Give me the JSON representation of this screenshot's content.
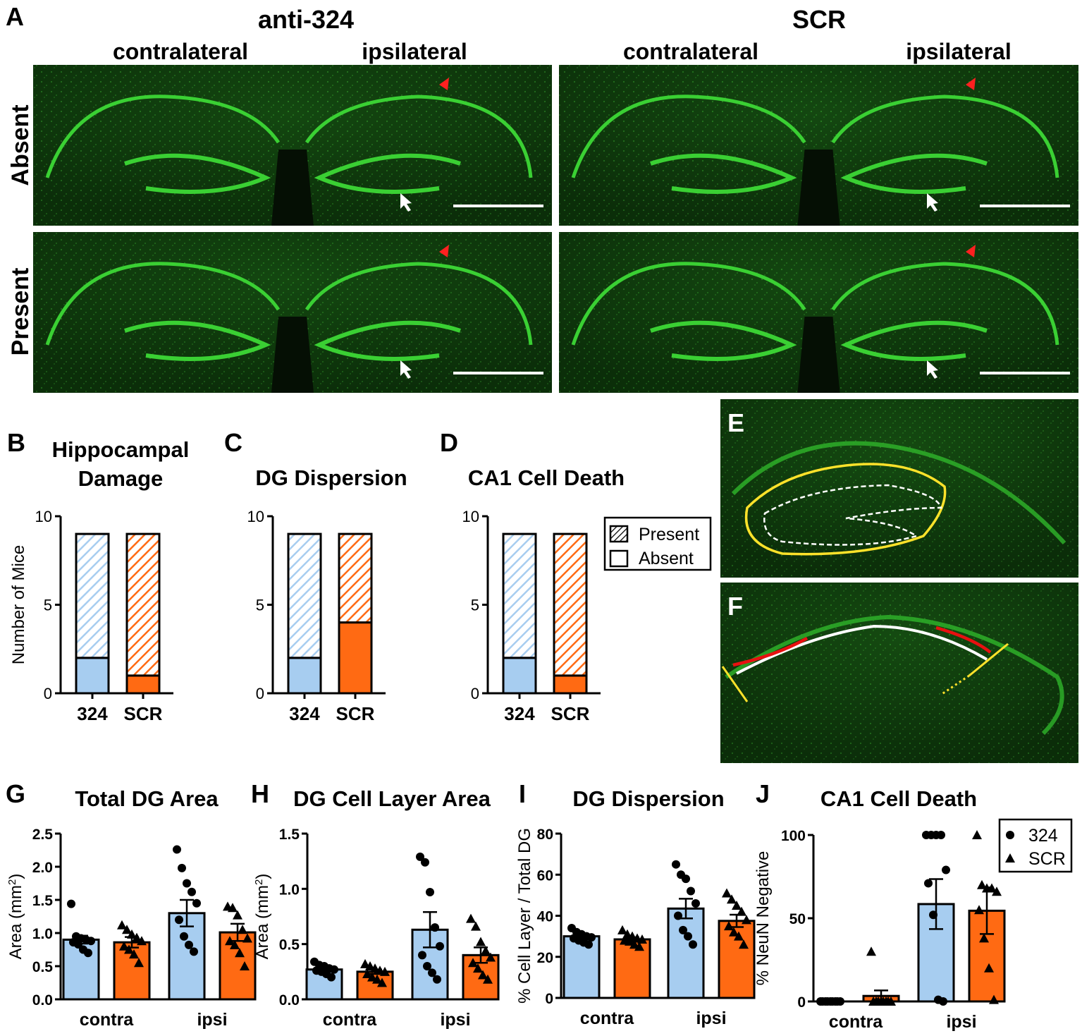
{
  "panel_a": {
    "letter": "A",
    "groups": [
      {
        "title": "anti-324",
        "sides": [
          "contralateral",
          "ipsilateral"
        ]
      },
      {
        "title": "SCR",
        "sides": [
          "contralateral",
          "ipsilateral"
        ]
      }
    ],
    "rows": [
      "Absent",
      "Present"
    ]
  },
  "panel_e": {
    "letter": "E"
  },
  "panel_f": {
    "letter": "F"
  },
  "colors": {
    "blue": "#a7cdf0",
    "orange": "#ff6a13",
    "tissue_dark": "#0a2a08",
    "tissue_green": "#2fb52a"
  },
  "stack_legend": {
    "entries": [
      "Present",
      "Absent"
    ]
  },
  "dot_legend": {
    "entries": [
      "324",
      "SCR"
    ]
  },
  "chart_data": [
    {
      "id": "B",
      "letter": "B",
      "type": "bar",
      "stacked": true,
      "title": [
        "Hippocampal",
        "Damage"
      ],
      "ylabel": "Number of Mice",
      "ylim": [
        0,
        10
      ],
      "yticks": [
        "0",
        "5",
        "10"
      ],
      "categories": [
        "324",
        "SCR"
      ],
      "series": [
        {
          "name": "Absent",
          "values": [
            2,
            1
          ]
        },
        {
          "name": "Present",
          "values": [
            7,
            8
          ]
        }
      ]
    },
    {
      "id": "C",
      "letter": "C",
      "type": "bar",
      "stacked": true,
      "title": [
        "DG Dispersion"
      ],
      "ylabel": "",
      "ylim": [
        0,
        10
      ],
      "yticks": [
        "0",
        "5",
        "10"
      ],
      "categories": [
        "324",
        "SCR"
      ],
      "series": [
        {
          "name": "Absent",
          "values": [
            2,
            4
          ]
        },
        {
          "name": "Present",
          "values": [
            7,
            5
          ]
        }
      ]
    },
    {
      "id": "D",
      "letter": "D",
      "type": "bar",
      "stacked": true,
      "title": [
        "CA1 Cell Death"
      ],
      "ylabel": "",
      "ylim": [
        0,
        10
      ],
      "yticks": [
        "0",
        "5",
        "10"
      ],
      "categories": [
        "324",
        "SCR"
      ],
      "series": [
        {
          "name": "Absent",
          "values": [
            2,
            1
          ]
        },
        {
          "name": "Present",
          "values": [
            7,
            8
          ]
        }
      ]
    },
    {
      "id": "G",
      "letter": "G",
      "type": "bar",
      "title": "Total DG Area",
      "ylabel": "Area (mm",
      "ylim": [
        0,
        2.5
      ],
      "yticks": [
        "0.0",
        "0.5",
        "1.0",
        "1.5",
        "2.0",
        "2.5"
      ],
      "categories": [
        "contra",
        "ipsi"
      ],
      "series": [
        {
          "name": "324",
          "values": [
            0.9,
            1.3
          ],
          "sem": [
            0.06,
            0.2
          ],
          "points": [
            [
              1.44,
              0.95,
              0.92,
              0.9,
              0.88,
              0.86,
              0.83,
              0.75,
              0.7
            ],
            [
              2.26,
              1.98,
              1.75,
              1.62,
              1.45,
              1.2,
              0.95,
              0.82,
              0.72
            ]
          ]
        },
        {
          "name": "SCR",
          "values": [
            0.86,
            1.01
          ],
          "sem": [
            0.08,
            0.13
          ],
          "points": [
            [
              1.12,
              1.05,
              0.98,
              0.93,
              0.88,
              0.8,
              0.75,
              0.68,
              0.55
            ],
            [
              1.4,
              1.38,
              1.27,
              1.05,
              0.92,
              0.88,
              0.82,
              0.7,
              0.5
            ]
          ]
        }
      ]
    },
    {
      "id": "H",
      "letter": "H",
      "type": "bar",
      "title": "DG Cell Layer Area",
      "ylabel": "Area (mm",
      "ylim": [
        0,
        1.5
      ],
      "yticks": [
        "0.0",
        "0.5",
        "1.0",
        "1.5"
      ],
      "categories": [
        "contra",
        "ipsi"
      ],
      "series": [
        {
          "name": "324",
          "values": [
            0.27,
            0.63
          ],
          "sem": [
            0.02,
            0.16
          ],
          "points": [
            [
              0.34,
              0.31,
              0.3,
              0.28,
              0.27,
              0.26,
              0.25,
              0.23,
              0.2
            ],
            [
              1.29,
              1.24,
              0.97,
              0.65,
              0.48,
              0.4,
              0.3,
              0.24,
              0.18
            ]
          ]
        },
        {
          "name": "SCR",
          "values": [
            0.25,
            0.4
          ],
          "sem": [
            0.02,
            0.07
          ],
          "points": [
            [
              0.32,
              0.3,
              0.28,
              0.26,
              0.25,
              0.23,
              0.2,
              0.18,
              0.15
            ],
            [
              0.73,
              0.66,
              0.52,
              0.44,
              0.38,
              0.33,
              0.28,
              0.22,
              0.18
            ]
          ]
        }
      ]
    },
    {
      "id": "I",
      "letter": "I",
      "type": "bar",
      "title": "DG Dispersion",
      "ylabel": "% Cell Layer / Total DG",
      "ylim": [
        0,
        80
      ],
      "yticks": [
        "0",
        "20",
        "40",
        "60",
        "80"
      ],
      "categories": [
        "contra",
        "ipsi"
      ],
      "series": [
        {
          "name": "324",
          "values": [
            30,
            43.5
          ],
          "sem": [
            1.2,
            4.8
          ],
          "points": [
            [
              34,
              32,
              31,
              30,
              29.5,
              29,
              28,
              27,
              26
            ],
            [
              65,
              60,
              58,
              52,
              46,
              40,
              33,
              30,
              26
            ]
          ]
        },
        {
          "name": "SCR",
          "values": [
            28.5,
            37.5
          ],
          "sem": [
            1.0,
            3.0
          ],
          "points": [
            [
              33,
              31,
              30,
              29,
              28.5,
              28,
              27.5,
              26,
              25
            ],
            [
              51,
              48,
              45,
              42,
              38,
              35,
              32,
              30,
              26
            ]
          ]
        }
      ]
    },
    {
      "id": "J",
      "letter": "J",
      "type": "bar",
      "title": "CA1 Cell Death",
      "ylabel": "% NeuN Negative",
      "ylim": [
        0,
        100
      ],
      "yticks": [
        "0",
        "50",
        "100"
      ],
      "categories": [
        "contra",
        "ipsi"
      ],
      "series": [
        {
          "name": "324",
          "values": [
            0,
            58.5
          ],
          "sem": [
            0,
            15
          ],
          "points": [
            [
              0,
              0,
              0,
              0,
              0,
              0,
              0,
              0,
              0
            ],
            [
              100,
              100,
              100,
              100,
              79,
              71,
              52,
              1,
              0
            ]
          ]
        },
        {
          "name": "SCR",
          "values": [
            3.3,
            54.5
          ],
          "sem": [
            3.3,
            14
          ],
          "points": [
            [
              30,
              0,
              0,
              0,
              0,
              0,
              0,
              0,
              0
            ],
            [
              100,
              70,
              68,
              68,
              66,
              55,
              38,
              20,
              1
            ]
          ]
        }
      ]
    }
  ]
}
